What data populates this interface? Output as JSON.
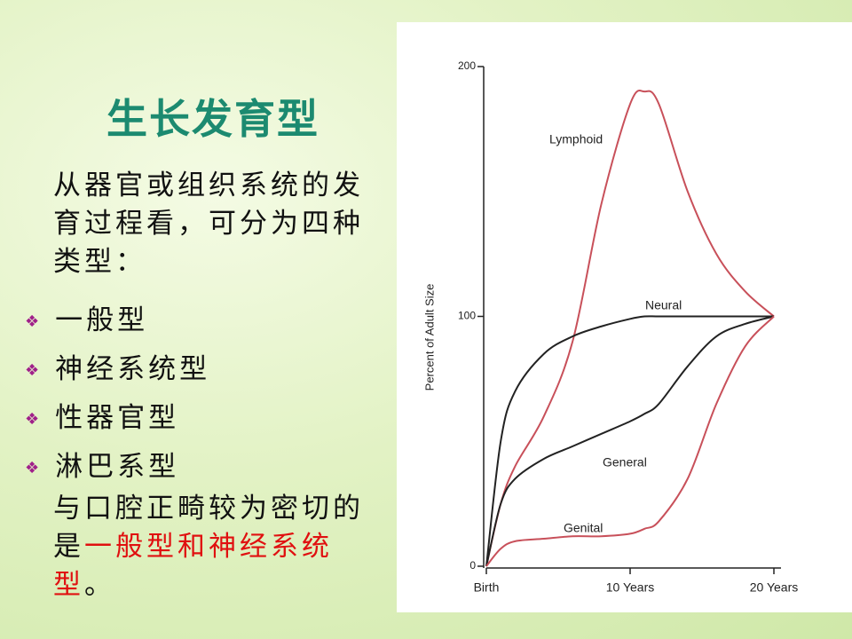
{
  "slide": {
    "title": "生长发育型",
    "intro": "从器官或组织系统的发育过程看，可分为四种类型：",
    "bullets": [
      "一般型",
      "神经系统型",
      "性器官型",
      "淋巴系型"
    ],
    "conclusion": {
      "before": "与口腔正畸较为密切的",
      "middle": "是",
      "highlight": "一般型和神经系统型",
      "after": "。"
    }
  },
  "chart_data": {
    "type": "line",
    "ylabel": "Percent of Adult Size",
    "x": [
      0,
      1,
      2,
      4,
      6,
      8,
      10,
      11,
      12,
      14,
      16,
      18,
      20
    ],
    "xlim": [
      0,
      20
    ],
    "xticks": [
      {
        "value": 0,
        "label": "Birth"
      },
      {
        "value": 10,
        "label": "10 Years"
      },
      {
        "value": 20,
        "label": "20 Years"
      }
    ],
    "ylim": [
      0,
      200
    ],
    "yticks": [
      0,
      100,
      200
    ],
    "series": [
      {
        "name": "Lymphoid",
        "color": "#c8505a",
        "values": [
          0,
          25,
          40,
          60,
          90,
          145,
          185,
          190,
          185,
          150,
          125,
          110,
          100
        ]
      },
      {
        "name": "Neural",
        "color": "#222222",
        "values": [
          0,
          50,
          70,
          85,
          92,
          96,
          99,
          100,
          100,
          100,
          100,
          100,
          100
        ]
      },
      {
        "name": "General",
        "color": "#222222",
        "values": [
          0,
          25,
          35,
          43,
          48,
          53,
          58,
          61,
          65,
          80,
          92,
          97,
          100
        ]
      },
      {
        "name": "Genital",
        "color": "#c8505a",
        "values": [
          0,
          7,
          10,
          11,
          12,
          12,
          13,
          15,
          18,
          35,
          65,
          88,
          100
        ]
      }
    ]
  }
}
